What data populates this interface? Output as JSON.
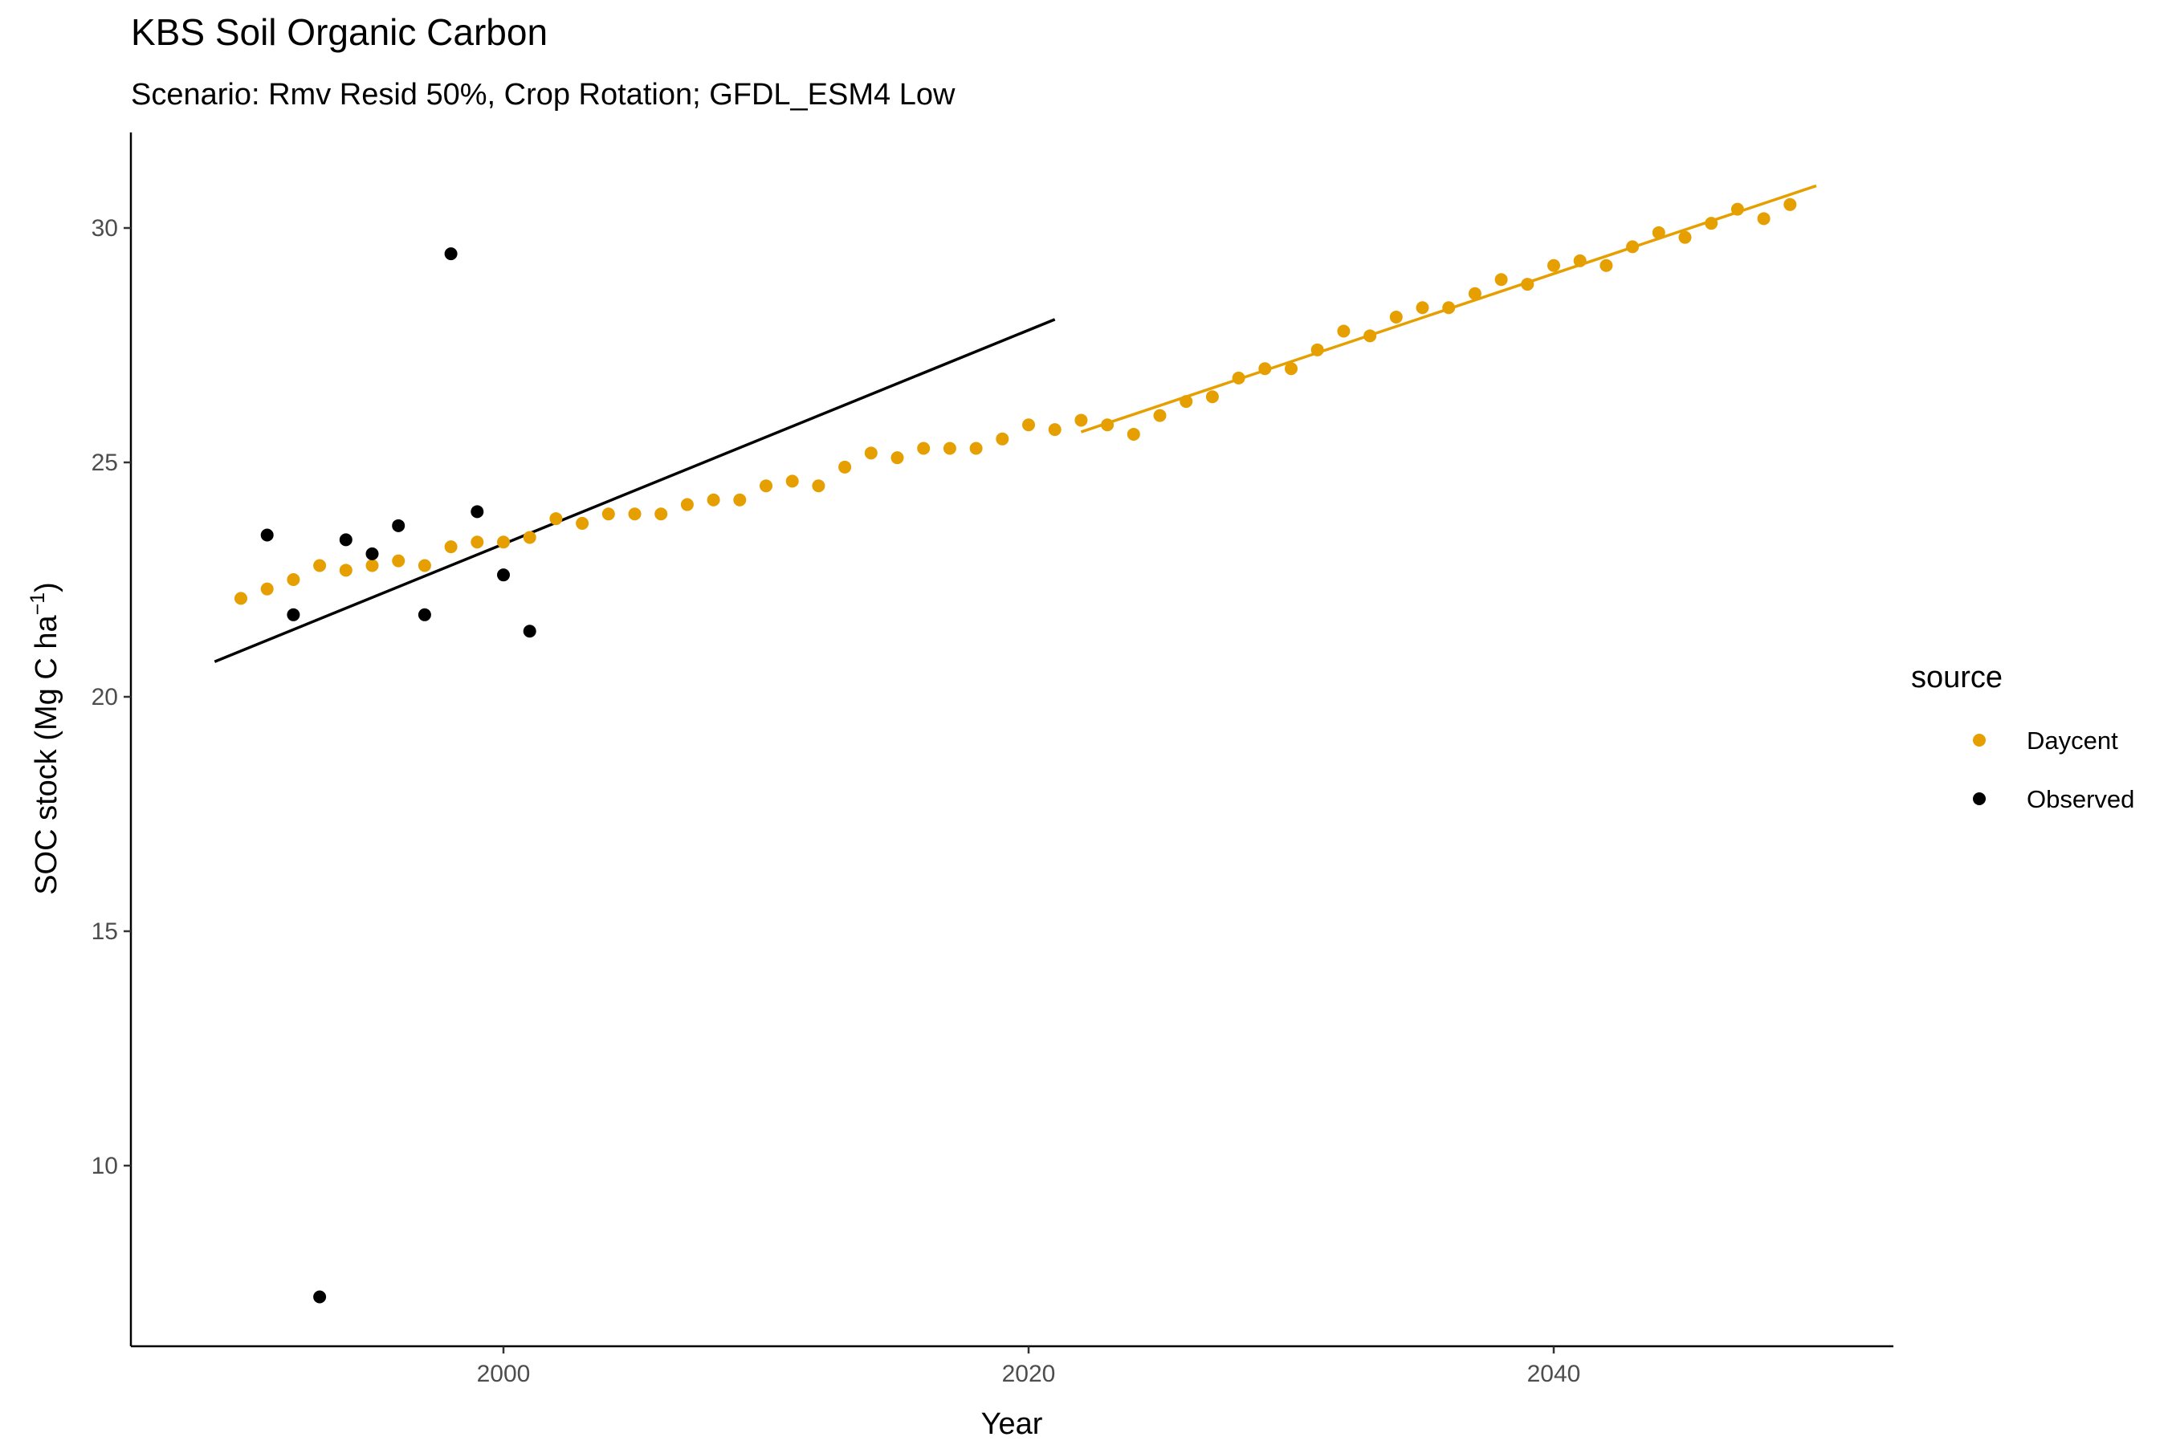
{
  "chart_data": {
    "type": "scatter",
    "title": "KBS Soil Organic Carbon",
    "subtitle": "Scenario: Rmv Resid 50%, Crop Rotation; GFDL_ESM4 Low",
    "xlabel": "Year",
    "ylabel_main": "SOC stock (Mg C ha",
    "ylabel_sup": "−1",
    "ylabel_close": ")",
    "xlim": [
      1985,
      2053
    ],
    "ylim": [
      6.0,
      32.0
    ],
    "xticks": [
      2000,
      2020,
      2040
    ],
    "yticks": [
      10,
      15,
      20,
      25,
      30
    ],
    "grid": false,
    "legend": {
      "title": "source",
      "placement": "right",
      "entries": [
        {
          "label": "Daycent",
          "color": "#E69F00"
        },
        {
          "label": "Observed",
          "color": "#000000"
        }
      ]
    },
    "series": [
      {
        "name": "Daycent",
        "color": "#E69F00",
        "points": [
          [
            1990,
            22.1
          ],
          [
            1991,
            22.3
          ],
          [
            1992,
            22.5
          ],
          [
            1993,
            22.8
          ],
          [
            1994,
            22.7
          ],
          [
            1995,
            22.8
          ],
          [
            1996,
            22.9
          ],
          [
            1997,
            22.8
          ],
          [
            1998,
            23.2
          ],
          [
            1999,
            23.3
          ],
          [
            2000,
            23.3
          ],
          [
            2001,
            23.4
          ],
          [
            2002,
            23.8
          ],
          [
            2003,
            23.7
          ],
          [
            2004,
            23.9
          ],
          [
            2005,
            23.9
          ],
          [
            2006,
            23.9
          ],
          [
            2007,
            24.1
          ],
          [
            2008,
            24.2
          ],
          [
            2009,
            24.2
          ],
          [
            2010,
            24.5
          ],
          [
            2011,
            24.6
          ],
          [
            2012,
            24.5
          ],
          [
            2013,
            24.9
          ],
          [
            2014,
            25.2
          ],
          [
            2015,
            25.1
          ],
          [
            2016,
            25.3
          ],
          [
            2017,
            25.3
          ],
          [
            2018,
            25.3
          ],
          [
            2019,
            25.5
          ],
          [
            2020,
            25.8
          ],
          [
            2021,
            25.7
          ],
          [
            2022,
            25.9
          ],
          [
            2023,
            25.8
          ],
          [
            2024,
            25.6
          ],
          [
            2025,
            26.0
          ],
          [
            2026,
            26.3
          ],
          [
            2027,
            26.4
          ],
          [
            2028,
            26.8
          ],
          [
            2029,
            27.0
          ],
          [
            2030,
            27.0
          ],
          [
            2031,
            27.4
          ],
          [
            2032,
            27.8
          ],
          [
            2033,
            27.7
          ],
          [
            2034,
            28.1
          ],
          [
            2035,
            28.3
          ],
          [
            2036,
            28.3
          ],
          [
            2037,
            28.6
          ],
          [
            2038,
            28.9
          ],
          [
            2039,
            28.8
          ],
          [
            2040,
            29.2
          ],
          [
            2041,
            29.3
          ],
          [
            2042,
            29.2
          ],
          [
            2043,
            29.6
          ],
          [
            2044,
            29.9
          ],
          [
            2045,
            29.8
          ],
          [
            2046,
            30.1
          ],
          [
            2047,
            30.4
          ],
          [
            2048,
            30.2
          ],
          [
            2049,
            30.5
          ]
        ],
        "trend": [
          [
            2022,
            25.65
          ],
          [
            2050,
            30.9
          ]
        ]
      },
      {
        "name": "Observed",
        "color": "#000000",
        "points": [
          [
            1991,
            23.45
          ],
          [
            1992,
            21.75
          ],
          [
            1993,
            7.2
          ],
          [
            1994,
            23.35
          ],
          [
            1995,
            23.05
          ],
          [
            1996,
            23.65
          ],
          [
            1997,
            21.75
          ],
          [
            1998,
            29.45
          ],
          [
            1999,
            23.95
          ],
          [
            2000,
            22.6
          ],
          [
            2001,
            21.4
          ]
        ],
        "trend": [
          [
            1989,
            20.75
          ],
          [
            2021,
            28.05
          ]
        ]
      }
    ]
  }
}
